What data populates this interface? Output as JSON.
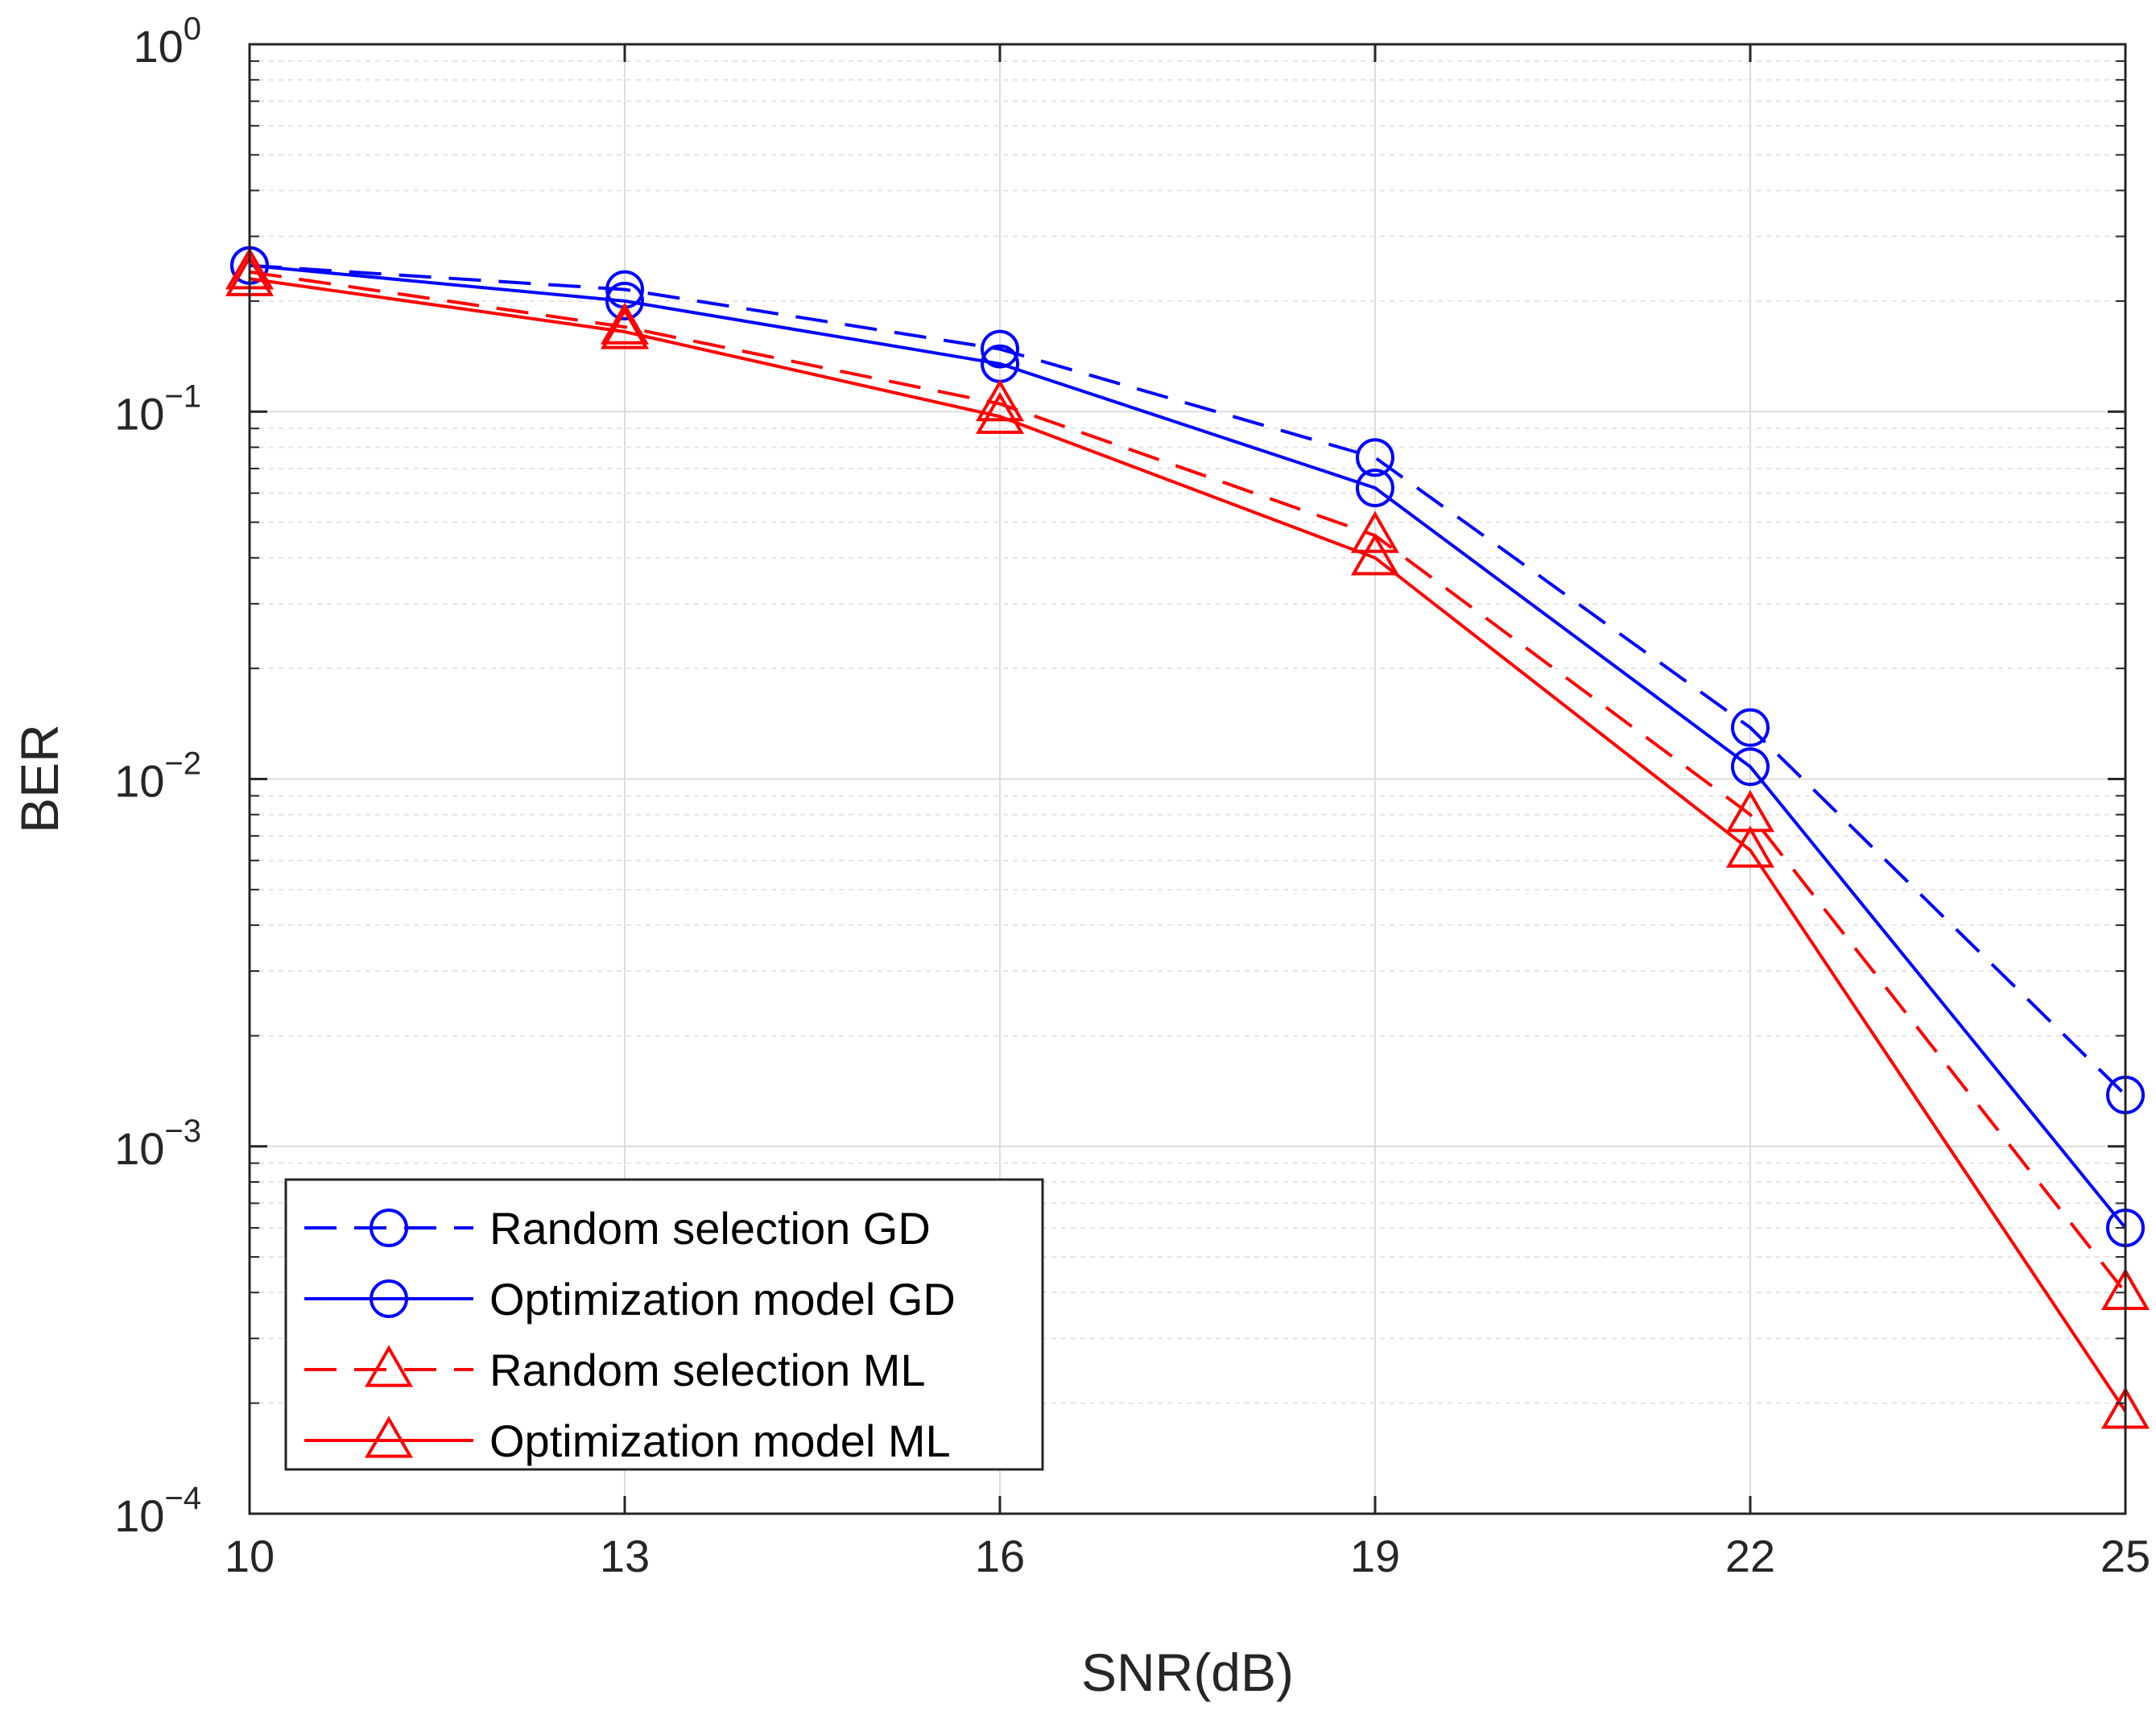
{
  "chart_data": {
    "type": "line",
    "title": "",
    "xlabel": "SNR(dB)",
    "ylabel": "BER",
    "yscale": "log",
    "xlim": [
      10,
      25
    ],
    "ylim": [
      0.0001,
      1
    ],
    "xticks": [
      10,
      13,
      16,
      19,
      22,
      25
    ],
    "xtick_labels": [
      "10",
      "13",
      "16",
      "19",
      "22",
      "25"
    ],
    "yticks": [
      {
        "value": 1,
        "base": "10",
        "exp": "0"
      },
      {
        "value": 0.1,
        "base": "10",
        "exp": "−1"
      },
      {
        "value": 0.01,
        "base": "10",
        "exp": "−2"
      },
      {
        "value": 0.001,
        "base": "10",
        "exp": "−3"
      },
      {
        "value": 0.0001,
        "base": "10",
        "exp": "−4"
      }
    ],
    "grid": true,
    "legend_position": "bottom-left",
    "x": [
      10,
      13,
      16,
      19,
      22,
      25
    ],
    "series": [
      {
        "name": "Random selection GD",
        "color": "#0000ff",
        "dash": "dashed",
        "marker": "circle",
        "values": [
          0.25,
          0.215,
          0.148,
          0.075,
          0.0138,
          0.00138
        ]
      },
      {
        "name": "Optimization model GD",
        "color": "#0000ff",
        "dash": "solid",
        "marker": "circle",
        "values": [
          0.25,
          0.2,
          0.135,
          0.062,
          0.0108,
          0.0006
        ]
      },
      {
        "name": "Random selection ML",
        "color": "#ff0000",
        "dash": "dashed",
        "marker": "triangle",
        "values": [
          0.24,
          0.17,
          0.105,
          0.046,
          0.008,
          0.0004
        ]
      },
      {
        "name": "Optimization model ML",
        "color": "#ff0000",
        "dash": "solid",
        "marker": "triangle",
        "values": [
          0.23,
          0.165,
          0.097,
          0.04,
          0.0064,
          0.00019
        ]
      }
    ]
  }
}
